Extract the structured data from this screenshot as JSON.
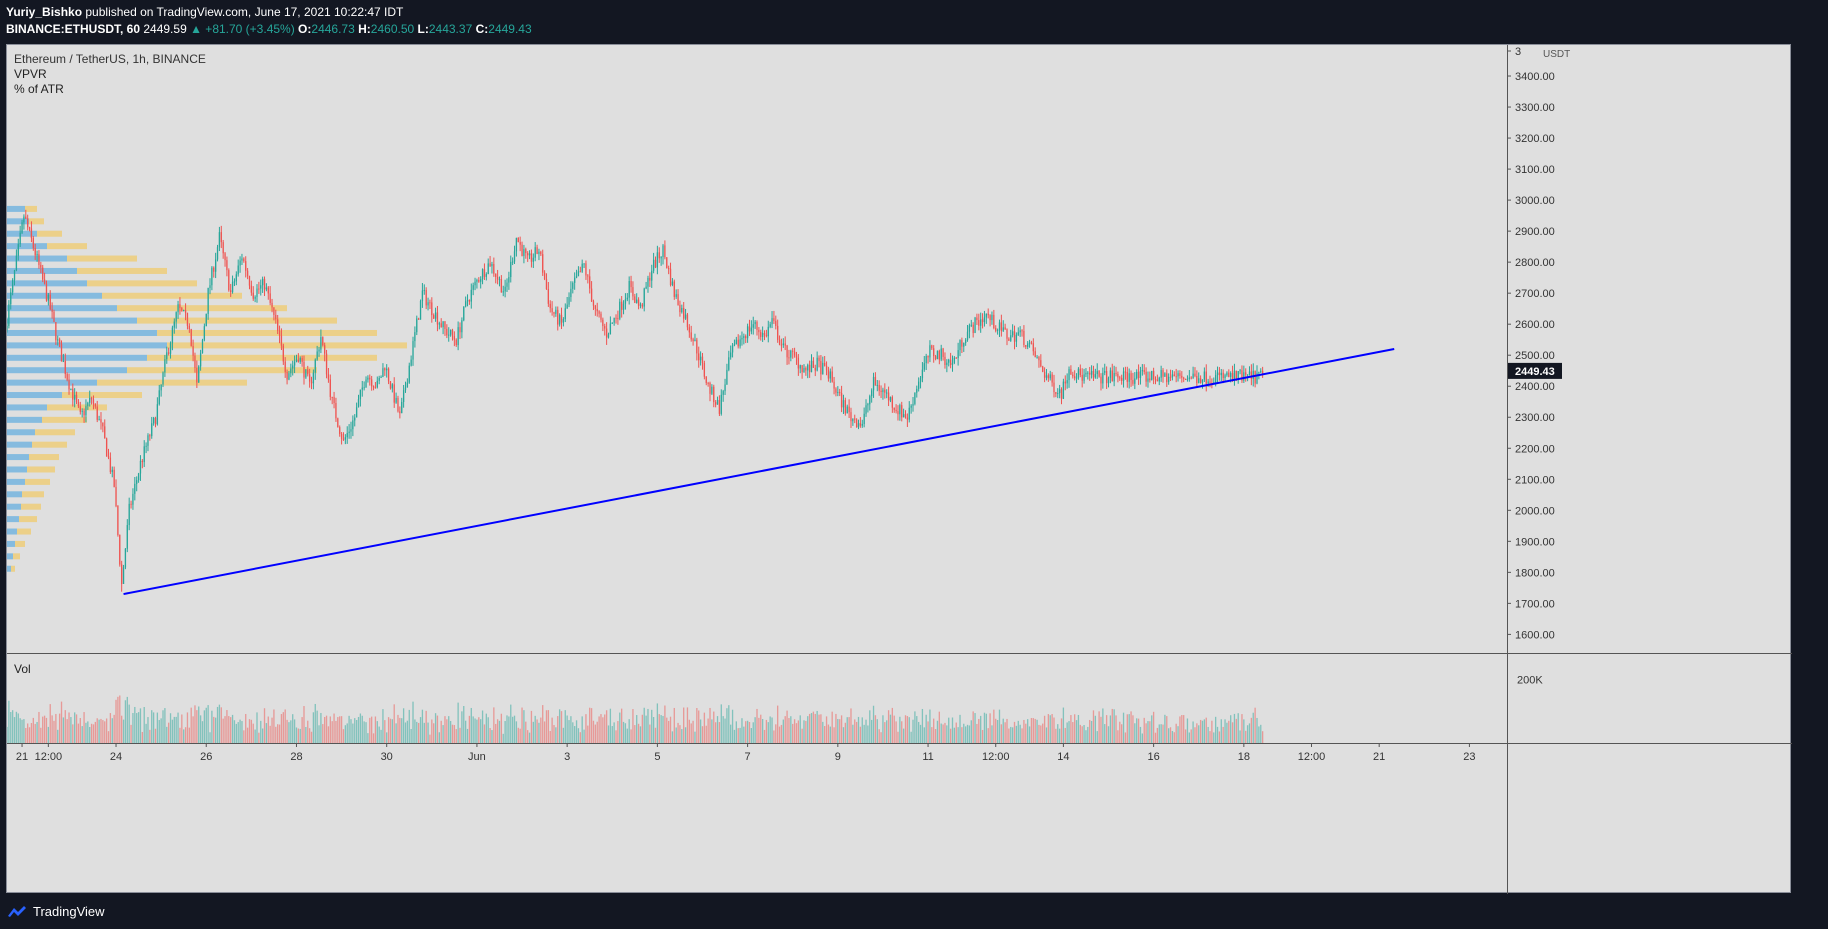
{
  "header": {
    "author": "Yuriy_Bishko",
    "published_text": "published on TradingView.com, June 17, 2021 10:22:47 IDT",
    "symbol": "BINANCE:ETHUSDT, 60",
    "last": "2449.59",
    "change": "▲ +81.70 (+3.45%)",
    "o_label": "O:",
    "o_value": "2446.73",
    "h_label": "H:",
    "h_value": "2460.50",
    "l_label": "L:",
    "l_value": "2443.37",
    "c_label": "C:",
    "c_value": "2449.43"
  },
  "legend": {
    "title": "Ethereum / TetherUS, 1h, BINANCE",
    "indicator1": "VPVR",
    "indicator2": "% of ATR",
    "volume_label": "Vol"
  },
  "footer": {
    "brand": "TradingView"
  },
  "colors": {
    "background": "#dfdfdf",
    "up": "#26a69a",
    "down": "#ef5350",
    "trendline": "#0000ff",
    "vp_blue": "#4aa3df",
    "vp_yellow": "#f5c242",
    "price_badge": "#131722"
  },
  "chart_data": {
    "type": "candlestick",
    "currency": "USDT",
    "price_axis_ticks": [
      "1600.00",
      "1700.00",
      "1800.00",
      "1900.00",
      "2000.00",
      "2100.00",
      "2200.00",
      "2300.00",
      "2400.00",
      "2500.00",
      "2600.00",
      "2700.00",
      "2800.00",
      "2900.00",
      "3000.00",
      "3100.00",
      "3200.00",
      "3300.00",
      "3400.00",
      "3"
    ],
    "ylim": [
      1540,
      3500
    ],
    "current_price": "2449.43",
    "volume_axis_ticks": [
      "200K"
    ],
    "volume_max": 280000,
    "time_axis_labels": [
      "21",
      "12:00",
      "24",
      "26",
      "28",
      "30",
      "Jun",
      "3",
      "5",
      "7",
      "9",
      "11",
      "12:00",
      "14",
      "16",
      "18",
      "12:00",
      "21",
      "23"
    ],
    "time_axis_hours": [
      -2,
      12,
      48,
      96,
      144,
      192,
      240,
      288,
      336,
      384,
      432,
      480,
      516,
      552,
      600,
      648,
      684,
      720,
      768
    ],
    "x_range_hours": [
      -10,
      788
    ],
    "last_candle_hour": 658,
    "anchors": [
      [
        -10,
        2580
      ],
      [
        0,
        2950
      ],
      [
        6,
        2830
      ],
      [
        14,
        2650
      ],
      [
        18,
        2540
      ],
      [
        24,
        2410
      ],
      [
        30,
        2300
      ],
      [
        36,
        2360
      ],
      [
        42,
        2250
      ],
      [
        48,
        2080
      ],
      [
        52,
        1760
      ],
      [
        56,
        2000
      ],
      [
        62,
        2150
      ],
      [
        70,
        2300
      ],
      [
        76,
        2500
      ],
      [
        82,
        2650
      ],
      [
        88,
        2600
      ],
      [
        92,
        2400
      ],
      [
        98,
        2700
      ],
      [
        104,
        2880
      ],
      [
        110,
        2700
      ],
      [
        116,
        2820
      ],
      [
        122,
        2700
      ],
      [
        128,
        2730
      ],
      [
        134,
        2600
      ],
      [
        140,
        2440
      ],
      [
        146,
        2500
      ],
      [
        152,
        2400
      ],
      [
        158,
        2560
      ],
      [
        164,
        2350
      ],
      [
        170,
        2220
      ],
      [
        176,
        2300
      ],
      [
        182,
        2440
      ],
      [
        188,
        2400
      ],
      [
        192,
        2470
      ],
      [
        200,
        2300
      ],
      [
        206,
        2500
      ],
      [
        212,
        2700
      ],
      [
        218,
        2640
      ],
      [
        224,
        2580
      ],
      [
        230,
        2550
      ],
      [
        236,
        2680
      ],
      [
        242,
        2750
      ],
      [
        248,
        2800
      ],
      [
        256,
        2700
      ],
      [
        262,
        2880
      ],
      [
        268,
        2800
      ],
      [
        274,
        2840
      ],
      [
        280,
        2650
      ],
      [
        286,
        2600
      ],
      [
        292,
        2720
      ],
      [
        298,
        2790
      ],
      [
        304,
        2640
      ],
      [
        310,
        2570
      ],
      [
        316,
        2640
      ],
      [
        322,
        2720
      ],
      [
        328,
        2650
      ],
      [
        334,
        2780
      ],
      [
        340,
        2840
      ],
      [
        346,
        2700
      ],
      [
        352,
        2620
      ],
      [
        358,
        2520
      ],
      [
        364,
        2400
      ],
      [
        370,
        2330
      ],
      [
        376,
        2500
      ],
      [
        382,
        2560
      ],
      [
        388,
        2600
      ],
      [
        394,
        2560
      ],
      [
        398,
        2610
      ],
      [
        404,
        2520
      ],
      [
        410,
        2490
      ],
      [
        416,
        2450
      ],
      [
        422,
        2470
      ],
      [
        428,
        2440
      ],
      [
        434,
        2360
      ],
      [
        440,
        2300
      ],
      [
        446,
        2280
      ],
      [
        452,
        2410
      ],
      [
        458,
        2380
      ],
      [
        464,
        2330
      ],
      [
        470,
        2300
      ],
      [
        476,
        2420
      ],
      [
        482,
        2510
      ],
      [
        488,
        2500
      ],
      [
        494,
        2470
      ],
      [
        500,
        2560
      ],
      [
        506,
        2600
      ],
      [
        512,
        2630
      ],
      [
        518,
        2590
      ],
      [
        524,
        2560
      ],
      [
        530,
        2570
      ],
      [
        536,
        2520
      ],
      [
        542,
        2450
      ],
      [
        548,
        2400
      ],
      [
        552,
        2380
      ],
      [
        556,
        2460
      ],
      [
        560,
        2440
      ],
      [
        564,
        2430
      ]
    ],
    "trendline": {
      "start": [
        52,
        1730
      ],
      "end": [
        728,
        2520
      ]
    },
    "volume_profile_blue": [
      [
        2970,
        18
      ],
      [
        2930,
        22
      ],
      [
        2890,
        30
      ],
      [
        2850,
        40
      ],
      [
        2810,
        60
      ],
      [
        2770,
        70
      ],
      [
        2730,
        80
      ],
      [
        2690,
        95
      ],
      [
        2650,
        110
      ],
      [
        2610,
        130
      ],
      [
        2570,
        150
      ],
      [
        2530,
        160
      ],
      [
        2490,
        140
      ],
      [
        2450,
        120
      ],
      [
        2410,
        90
      ],
      [
        2370,
        55
      ],
      [
        2330,
        40
      ],
      [
        2290,
        35
      ],
      [
        2250,
        28
      ],
      [
        2210,
        25
      ],
      [
        2170,
        22
      ],
      [
        2130,
        20
      ],
      [
        2090,
        18
      ],
      [
        2050,
        15
      ],
      [
        2010,
        14
      ],
      [
        1970,
        12
      ],
      [
        1930,
        10
      ],
      [
        1890,
        8
      ],
      [
        1850,
        6
      ],
      [
        1810,
        4
      ]
    ],
    "volume_profile_yellow": [
      [
        2970,
        12
      ],
      [
        2930,
        15
      ],
      [
        2890,
        25
      ],
      [
        2850,
        40
      ],
      [
        2810,
        70
      ],
      [
        2770,
        90
      ],
      [
        2730,
        110
      ],
      [
        2690,
        140
      ],
      [
        2650,
        170
      ],
      [
        2610,
        200
      ],
      [
        2570,
        220
      ],
      [
        2530,
        240
      ],
      [
        2490,
        230
      ],
      [
        2450,
        190
      ],
      [
        2410,
        150
      ],
      [
        2370,
        80
      ],
      [
        2330,
        60
      ],
      [
        2290,
        45
      ],
      [
        2250,
        40
      ],
      [
        2210,
        35
      ],
      [
        2170,
        30
      ],
      [
        2130,
        28
      ],
      [
        2090,
        25
      ],
      [
        2050,
        22
      ],
      [
        2010,
        20
      ],
      [
        1970,
        18
      ],
      [
        1930,
        14
      ],
      [
        1890,
        10
      ],
      [
        1850,
        7
      ],
      [
        1810,
        4
      ]
    ]
  }
}
